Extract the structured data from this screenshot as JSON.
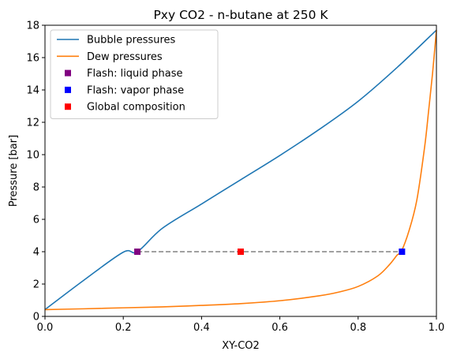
{
  "chart_data": {
    "type": "line",
    "title": "Pxy CO2 - n-butane at 250 K",
    "xlabel": "XY-CO2",
    "ylabel": "Pressure [bar]",
    "xlim": [
      0.0,
      1.0
    ],
    "ylim": [
      0,
      18
    ],
    "xticks": [
      "0.0",
      "0.2",
      "0.4",
      "0.6",
      "0.8",
      "1.0"
    ],
    "yticks": [
      "0",
      "2",
      "4",
      "6",
      "8",
      "10",
      "12",
      "14",
      "16",
      "18"
    ],
    "grid": false,
    "legend_position": "top-left",
    "series": [
      {
        "name": "Bubble pressures",
        "kind": "line",
        "color": "#1f77b4",
        "x": [
          0.0,
          0.1,
          0.2,
          0.236,
          0.3,
          0.4,
          0.5,
          0.6,
          0.7,
          0.8,
          0.9,
          1.0
        ],
        "y": [
          0.42,
          2.25,
          3.97,
          4.0,
          5.45,
          6.95,
          8.45,
          9.95,
          11.55,
          13.3,
          15.4,
          17.7
        ]
      },
      {
        "name": "Dew pressures",
        "kind": "line",
        "color": "#ff7f0e",
        "x": [
          0.0,
          0.1,
          0.2,
          0.3,
          0.4,
          0.5,
          0.6,
          0.7,
          0.75,
          0.8,
          0.85,
          0.88,
          0.9,
          0.91,
          0.93,
          0.95,
          0.97,
          0.98,
          0.99,
          1.0
        ],
        "y": [
          0.42,
          0.47,
          0.53,
          0.59,
          0.68,
          0.79,
          0.97,
          1.27,
          1.5,
          1.85,
          2.5,
          3.2,
          3.8,
          4.0,
          5.3,
          7.2,
          10.5,
          12.7,
          15.0,
          17.7
        ]
      },
      {
        "name": "Flash: liquid phase",
        "kind": "marker",
        "color": "#800080",
        "x": [
          0.236
        ],
        "y": [
          4.0
        ]
      },
      {
        "name": "Flash: vapor phase",
        "kind": "marker",
        "color": "#0000ff",
        "x": [
          0.912
        ],
        "y": [
          4.0
        ]
      },
      {
        "name": "Global composition",
        "kind": "marker",
        "color": "#ff0000",
        "x": [
          0.5
        ],
        "y": [
          4.0
        ]
      }
    ],
    "tie_line": {
      "color": "#808080",
      "style": "dashed",
      "x": [
        0.236,
        0.912
      ],
      "y": [
        4.0,
        4.0
      ]
    }
  }
}
